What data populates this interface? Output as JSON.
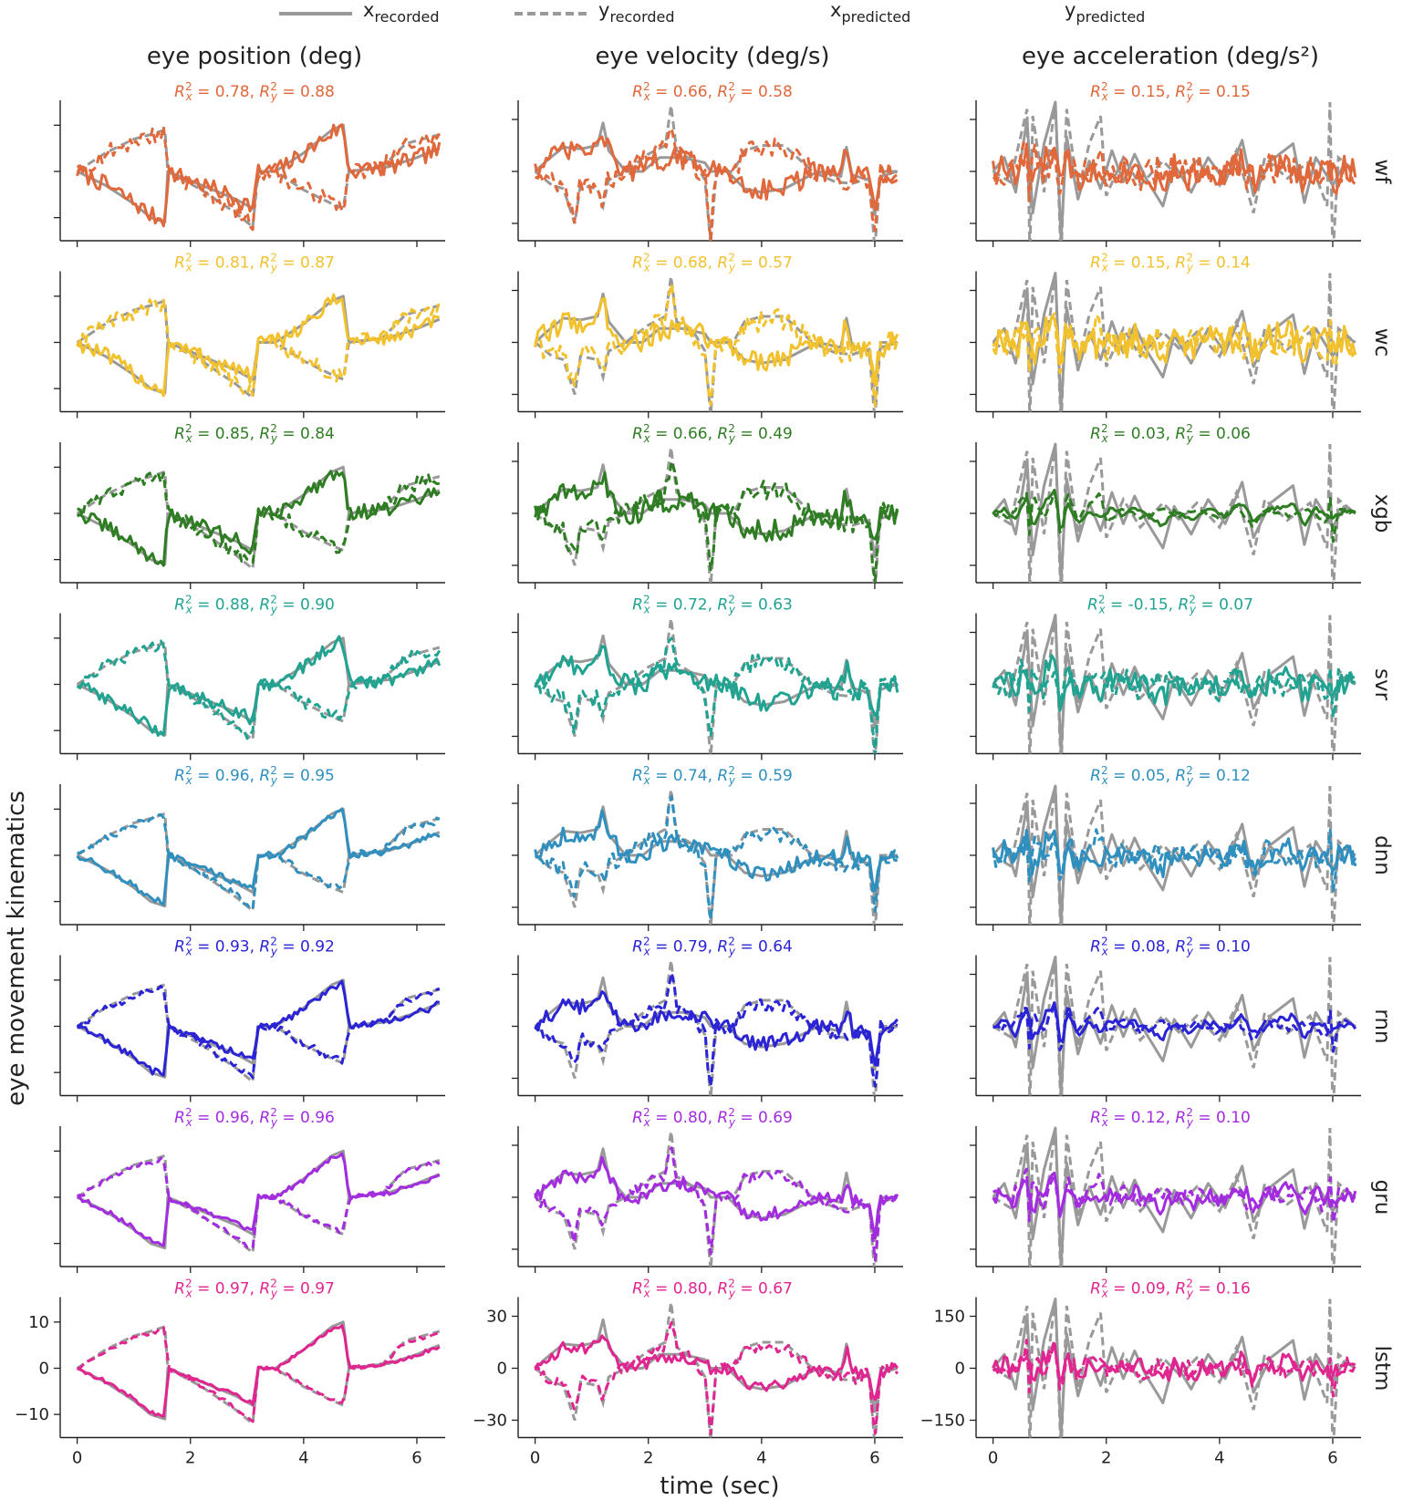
{
  "legend": [
    {
      "label": "x",
      "sub": "recorded",
      "style": "solid-gray"
    },
    {
      "label": "y",
      "sub": "recorded",
      "style": "dashed-gray"
    },
    {
      "label": "x",
      "sub": "predicted",
      "style": "solid-rainbow"
    },
    {
      "label": "y",
      "sub": "predicted",
      "style": "dashed-rainbow"
    }
  ],
  "column_titles": [
    "eye position (deg)",
    "eye velocity (deg/s)",
    "eye acceleration (deg/s²)"
  ],
  "ylabel": "eye movement kinematics",
  "xlabel": "time (sec)",
  "colors": {
    "recorded": "#999999",
    "wf": "#e0683a",
    "wc": "#f2c12e",
    "xgb": "#2e7d23",
    "svr": "#21a391",
    "dnn": "#2f8fbf",
    "rnn": "#2a24d6",
    "gru": "#a32be0",
    "lstm": "#e02590"
  },
  "chart_data": {
    "type": "line",
    "x_ticks": [
      0,
      2,
      4,
      6
    ],
    "xlim": [
      -0.3,
      6.5
    ],
    "columns": [
      {
        "title": "eye position (deg)",
        "ylim": [
          -15,
          15
        ],
        "y_ticks": [
          -10,
          0,
          10
        ],
        "y_tick_labels": [
          "−10",
          "0",
          "10"
        ]
      },
      {
        "title": "eye velocity (deg/s)",
        "ylim": [
          -40,
          40
        ],
        "y_ticks": [
          -30,
          0,
          30
        ],
        "y_tick_labels": [
          "−30",
          "0",
          "30"
        ]
      },
      {
        "title": "eye acceleration (deg/s²)",
        "ylim": [
          -200,
          200
        ],
        "y_ticks": [
          -150,
          0,
          150
        ],
        "y_tick_labels": [
          "−150",
          "0",
          "150"
        ]
      }
    ],
    "recorded": {
      "position": {
        "x": [
          [
            0,
            0
          ],
          [
            0.5,
            -3
          ],
          [
            1.0,
            -7
          ],
          [
            1.3,
            -10
          ],
          [
            1.55,
            -11
          ],
          [
            1.6,
            0
          ],
          [
            2.2,
            -3
          ],
          [
            2.8,
            -6
          ],
          [
            3.1,
            -8
          ],
          [
            3.2,
            0
          ],
          [
            3.5,
            0
          ],
          [
            4.0,
            4
          ],
          [
            4.5,
            9
          ],
          [
            4.7,
            10
          ],
          [
            4.8,
            0
          ],
          [
            5.5,
            1
          ],
          [
            6.0,
            3
          ],
          [
            6.4,
            5
          ]
        ],
        "y": [
          [
            0,
            0
          ],
          [
            0.5,
            4
          ],
          [
            1.0,
            7
          ],
          [
            1.3,
            8
          ],
          [
            1.55,
            9
          ],
          [
            1.6,
            0
          ],
          [
            2.2,
            -4
          ],
          [
            2.8,
            -9
          ],
          [
            3.1,
            -12
          ],
          [
            3.2,
            0
          ],
          [
            3.5,
            0
          ],
          [
            4.0,
            -4
          ],
          [
            4.5,
            -7
          ],
          [
            4.7,
            -8
          ],
          [
            4.8,
            0
          ],
          [
            5.4,
            1
          ],
          [
            5.8,
            6
          ],
          [
            6.4,
            8
          ]
        ]
      },
      "velocity": {
        "x": [
          [
            0,
            0
          ],
          [
            0.2,
            6
          ],
          [
            0.5,
            14
          ],
          [
            0.8,
            13
          ],
          [
            1.1,
            15
          ],
          [
            1.2,
            28
          ],
          [
            1.3,
            12
          ],
          [
            1.6,
            0
          ],
          [
            1.9,
            0
          ],
          [
            2.2,
            8
          ],
          [
            2.6,
            8
          ],
          [
            3.0,
            5
          ],
          [
            3.1,
            0
          ],
          [
            3.4,
            0
          ],
          [
            3.7,
            -10
          ],
          [
            4.0,
            -12
          ],
          [
            4.4,
            -10
          ],
          [
            4.7,
            -5
          ],
          [
            5.0,
            0
          ],
          [
            5.4,
            -3
          ],
          [
            5.5,
            14
          ],
          [
            5.6,
            -2
          ],
          [
            5.9,
            -5
          ],
          [
            6.0,
            -25
          ],
          [
            6.1,
            -3
          ],
          [
            6.4,
            0
          ]
        ],
        "y": [
          [
            0,
            0
          ],
          [
            0.3,
            -8
          ],
          [
            0.5,
            -10
          ],
          [
            0.7,
            -30
          ],
          [
            0.8,
            -8
          ],
          [
            1.1,
            -10
          ],
          [
            1.2,
            -20
          ],
          [
            1.3,
            -5
          ],
          [
            1.6,
            0
          ],
          [
            2.0,
            10
          ],
          [
            2.3,
            15
          ],
          [
            2.4,
            38
          ],
          [
            2.5,
            12
          ],
          [
            2.8,
            6
          ],
          [
            3.0,
            -5
          ],
          [
            3.1,
            -42
          ],
          [
            3.2,
            0
          ],
          [
            3.5,
            0
          ],
          [
            3.7,
            12
          ],
          [
            4.0,
            15
          ],
          [
            4.4,
            15
          ],
          [
            4.7,
            6
          ],
          [
            4.9,
            0
          ],
          [
            5.3,
            -6
          ],
          [
            5.6,
            -7
          ],
          [
            5.9,
            -4
          ],
          [
            6.0,
            -45
          ],
          [
            6.1,
            0
          ],
          [
            6.4,
            0
          ]
        ]
      },
      "acceleration": {
        "x": [
          [
            0,
            0
          ],
          [
            0.2,
            40
          ],
          [
            0.4,
            -60
          ],
          [
            0.6,
            150
          ],
          [
            0.7,
            -120
          ],
          [
            0.9,
            80
          ],
          [
            1.1,
            200
          ],
          [
            1.2,
            -200
          ],
          [
            1.3,
            100
          ],
          [
            1.5,
            -80
          ],
          [
            1.7,
            30
          ],
          [
            1.9,
            -50
          ],
          [
            2.1,
            60
          ],
          [
            2.3,
            -30
          ],
          [
            2.5,
            50
          ],
          [
            2.7,
            -20
          ],
          [
            3.0,
            -100
          ],
          [
            3.2,
            20
          ],
          [
            3.5,
            -60
          ],
          [
            3.8,
            40
          ],
          [
            4.1,
            -30
          ],
          [
            4.4,
            90
          ],
          [
            4.6,
            -70
          ],
          [
            4.9,
            30
          ],
          [
            5.3,
            80
          ],
          [
            5.5,
            -90
          ],
          [
            5.7,
            40
          ],
          [
            6.0,
            -40
          ],
          [
            6.2,
            20
          ],
          [
            6.4,
            0
          ]
        ],
        "y": [
          [
            0,
            0
          ],
          [
            0.3,
            -30
          ],
          [
            0.6,
            180
          ],
          [
            0.65,
            -250
          ],
          [
            0.7,
            160
          ],
          [
            0.9,
            -60
          ],
          [
            1.1,
            200
          ],
          [
            1.2,
            -250
          ],
          [
            1.3,
            180
          ],
          [
            1.5,
            -60
          ],
          [
            1.7,
            80
          ],
          [
            1.9,
            160
          ],
          [
            2.0,
            -70
          ],
          [
            2.3,
            40
          ],
          [
            2.6,
            -40
          ],
          [
            3.0,
            30
          ],
          [
            3.3,
            -20
          ],
          [
            3.6,
            30
          ],
          [
            4.0,
            -40
          ],
          [
            4.3,
            60
          ],
          [
            4.6,
            -120
          ],
          [
            4.8,
            40
          ],
          [
            5.2,
            -20
          ],
          [
            5.6,
            30
          ],
          [
            5.9,
            -100
          ],
          [
            5.95,
            200
          ],
          [
            6.0,
            -250
          ],
          [
            6.1,
            40
          ],
          [
            6.4,
            0
          ]
        ]
      }
    },
    "models": [
      {
        "name": "wf",
        "color_key": "wf",
        "r2": [
          [
            "0.78",
            "0.88"
          ],
          [
            "0.66",
            "0.58"
          ],
          [
            "0.15",
            "0.15"
          ]
        ],
        "noise": [
          0.35,
          0.45,
          0.6
        ],
        "y_ticks_shown": false
      },
      {
        "name": "wc",
        "color_key": "wc",
        "r2": [
          [
            "0.81",
            "0.87"
          ],
          [
            "0.68",
            "0.57"
          ],
          [
            "0.15",
            "0.14"
          ]
        ],
        "noise": [
          0.33,
          0.45,
          0.6
        ],
        "y_ticks_shown": false
      },
      {
        "name": "xgb",
        "color_key": "xgb",
        "r2": [
          [
            "0.85",
            "0.84"
          ],
          [
            "0.66",
            "0.49"
          ],
          [
            "0.03",
            "0.06"
          ]
        ],
        "noise": [
          0.3,
          0.45,
          0.08
        ],
        "y_ticks_shown": false
      },
      {
        "name": "svr",
        "color_key": "svr",
        "r2": [
          [
            "0.88",
            "0.90"
          ],
          [
            "0.72",
            "0.63"
          ],
          [
            "-0.15",
            "0.07"
          ]
        ],
        "noise": [
          0.25,
          0.4,
          0.5
        ],
        "y_ticks_shown": false
      },
      {
        "name": "dnn",
        "color_key": "dnn",
        "r2": [
          [
            "0.96",
            "0.95"
          ],
          [
            "0.74",
            "0.59"
          ],
          [
            "0.05",
            "0.12"
          ]
        ],
        "noise": [
          0.15,
          0.35,
          0.45
        ],
        "y_ticks_shown": false
      },
      {
        "name": "rnn",
        "color_key": "rnn",
        "r2": [
          [
            "0.93",
            "0.92"
          ],
          [
            "0.79",
            "0.64"
          ],
          [
            "0.08",
            "0.10"
          ]
        ],
        "noise": [
          0.15,
          0.3,
          0.15
        ],
        "y_ticks_shown": false
      },
      {
        "name": "gru",
        "color_key": "gru",
        "r2": [
          [
            "0.96",
            "0.96"
          ],
          [
            "0.80",
            "0.69"
          ],
          [
            "0.12",
            "0.10"
          ]
        ],
        "noise": [
          0.1,
          0.25,
          0.3
        ],
        "y_ticks_shown": false
      },
      {
        "name": "lstm",
        "color_key": "lstm",
        "r2": [
          [
            "0.97",
            "0.97"
          ],
          [
            "0.80",
            "0.67"
          ],
          [
            "0.09",
            "0.16"
          ]
        ],
        "noise": [
          0.08,
          0.25,
          0.35
        ],
        "y_ticks_shown": true
      }
    ]
  }
}
